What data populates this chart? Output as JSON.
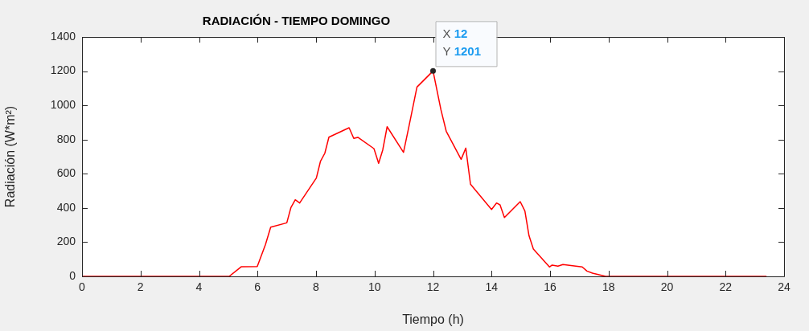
{
  "chart_data": {
    "type": "line",
    "title": "RADIACIÓN - TIEMPO DOMINGO",
    "xlabel": "Tiempo (h)",
    "ylabel": "Radiación (W*m²)",
    "x": [
      0,
      5.03,
      5.44,
      5.99,
      6.27,
      6.45,
      7.0,
      7.14,
      7.29,
      7.44,
      8.01,
      8.15,
      8.3,
      8.44,
      9.13,
      9.29,
      9.43,
      9.98,
      10.14,
      10.28,
      10.43,
      10.99,
      11.17,
      11.45,
      12,
      12.27,
      12.45,
      12.96,
      13.12,
      13.28,
      14.0,
      14.17,
      14.29,
      14.44,
      14.98,
      15.14,
      15.28,
      15.43,
      15.98,
      16.07,
      16.27,
      16.44,
      17.1,
      17.26,
      17.45,
      17.9,
      23.4
    ],
    "series": [
      {
        "color": "#ff0000",
        "values": [
          0,
          0,
          56,
          58,
          186,
          288,
          313,
          402,
          448,
          429,
          575,
          672,
          720,
          814,
          869,
          807,
          813,
          747,
          661,
          739,
          875,
          725,
          872,
          1107,
          1201,
          974,
          849,
          684,
          750,
          539,
          391,
          429,
          418,
          344,
          437,
          382,
          238,
          160,
          55,
          66,
          60,
          69,
          55,
          31,
          19,
          0,
          0
        ]
      }
    ],
    "xlim": [
      0,
      24
    ],
    "xticks": [
      0,
      2,
      4,
      6,
      8,
      10,
      12,
      14,
      16,
      18,
      20,
      22,
      24
    ],
    "ylim": [
      0,
      1400
    ],
    "yticks": [
      0,
      200,
      400,
      600,
      800,
      1000,
      1200,
      1400
    ],
    "grid": false,
    "legend": false,
    "marker": "none",
    "line_style": "solid",
    "annotations": [
      {
        "text": "X 12\nY 1201",
        "x": 12,
        "y": 1201
      }
    ]
  }
}
